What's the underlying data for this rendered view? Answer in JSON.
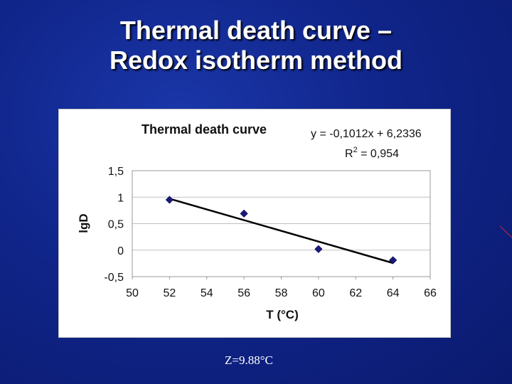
{
  "slide": {
    "title_line1": "Thermal death curve –",
    "title_line2": "Redox isotherm method",
    "note": "Z=9.88°C"
  },
  "colors": {
    "background": "#10258a",
    "marker": "#1a1a7a",
    "trendline": "#000000",
    "gridline": "#c0c0c0"
  },
  "chart_data": {
    "type": "scatter",
    "title": "Thermal death curve",
    "xlabel": "T (°C)",
    "ylabel": "lgD",
    "xlim": [
      50,
      66
    ],
    "ylim": [
      -0.5,
      1.5
    ],
    "x_ticks": [
      50,
      52,
      54,
      56,
      58,
      60,
      62,
      64,
      66
    ],
    "y_ticks": [
      -0.5,
      0,
      0.5,
      1,
      1.5
    ],
    "x_tick_labels": [
      "50",
      "52",
      "54",
      "56",
      "58",
      "60",
      "62",
      "64",
      "66"
    ],
    "y_tick_labels": [
      "-0,5",
      "0",
      "0,5",
      "1",
      "1,5"
    ],
    "grid": "horizontal",
    "series": [
      {
        "x": [
          52,
          56,
          60,
          64
        ],
        "y": [
          0.95,
          0.69,
          0.02,
          -0.19
        ]
      }
    ],
    "trendline": {
      "slope": -0.1012,
      "intercept": 6.2336,
      "x_range": [
        52,
        64
      ]
    },
    "equation_label": "y = -0,1012x + 6,2336",
    "r2_prefix": "R",
    "r2_exponent": "2",
    "r2_value": " = 0,954"
  }
}
